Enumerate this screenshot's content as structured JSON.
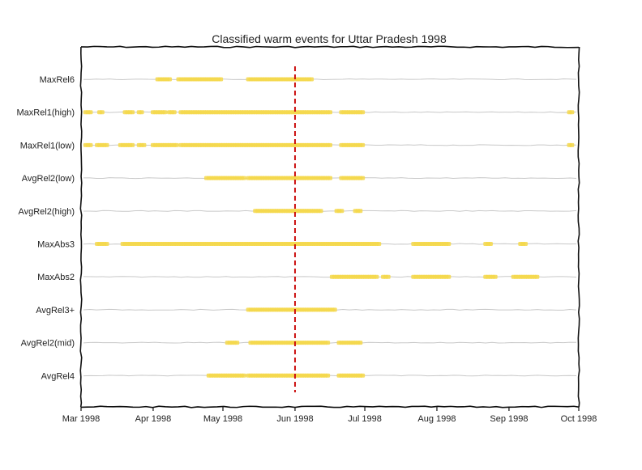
{
  "chart_data": {
    "type": "scatter",
    "title": "Classified warm events for Uttar Pradesh 1998",
    "xlabel": "",
    "ylabel": "",
    "x_range": [
      "1998-03-01",
      "1998-10-01"
    ],
    "x_ticks": [
      "Mar 1998",
      "Apr 1998",
      "May 1998",
      "Jun 1998",
      "Jul 1998",
      "Aug 1998",
      "Sep 1998",
      "Oct 1998"
    ],
    "marker_color": "#f5d84b",
    "baseline_color": "#c8c8c8",
    "reference_line": {
      "date": "1998-06-01",
      "color": "#cc1111",
      "style": "dashed"
    },
    "series": [
      {
        "name": "MaxRel6",
        "events": [
          [
            "1998-04-03",
            "1998-04-08"
          ],
          [
            "1998-04-12",
            "1998-04-30"
          ],
          [
            "1998-05-12",
            "1998-06-08"
          ]
        ]
      },
      {
        "name": "MaxRel1(high)",
        "events": [
          [
            "1998-03-03",
            "1998-03-05"
          ],
          [
            "1998-03-09",
            "1998-03-10"
          ],
          [
            "1998-03-20",
            "1998-03-23"
          ],
          [
            "1998-03-26",
            "1998-03-27"
          ],
          [
            "1998-04-01",
            "1998-04-06"
          ],
          [
            "1998-04-08",
            "1998-04-10"
          ],
          [
            "1998-04-13",
            "1998-06-16"
          ],
          [
            "1998-06-21",
            "1998-06-30"
          ],
          [
            "1998-09-27",
            "1998-09-28"
          ]
        ]
      },
      {
        "name": "MaxRel1(low)",
        "events": [
          [
            "1998-03-03",
            "1998-03-05"
          ],
          [
            "1998-03-08",
            "1998-03-12"
          ],
          [
            "1998-03-18",
            "1998-03-23"
          ],
          [
            "1998-03-26",
            "1998-03-28"
          ],
          [
            "1998-04-01",
            "1998-04-11"
          ],
          [
            "1998-04-13",
            "1998-06-16"
          ],
          [
            "1998-06-21",
            "1998-06-30"
          ],
          [
            "1998-09-27",
            "1998-09-28"
          ]
        ]
      },
      {
        "name": "AvgRel2(low)",
        "events": [
          [
            "1998-04-24",
            "1998-05-10"
          ],
          [
            "1998-05-12",
            "1998-06-16"
          ],
          [
            "1998-06-21",
            "1998-06-30"
          ]
        ]
      },
      {
        "name": "AvgRel2(high)",
        "events": [
          [
            "1998-05-15",
            "1998-06-12"
          ],
          [
            "1998-06-19",
            "1998-06-21"
          ],
          [
            "1998-06-27",
            "1998-06-29"
          ]
        ]
      },
      {
        "name": "MaxAbs3",
        "events": [
          [
            "1998-03-08",
            "1998-03-12"
          ],
          [
            "1998-03-19",
            "1998-07-07"
          ],
          [
            "1998-07-22",
            "1998-08-06"
          ],
          [
            "1998-08-22",
            "1998-08-24"
          ],
          [
            "1998-09-06",
            "1998-09-08"
          ]
        ]
      },
      {
        "name": "MaxAbs2",
        "events": [
          [
            "1998-06-17",
            "1998-07-06"
          ],
          [
            "1998-07-09",
            "1998-07-11"
          ],
          [
            "1998-07-22",
            "1998-08-06"
          ],
          [
            "1998-08-22",
            "1998-08-26"
          ],
          [
            "1998-09-03",
            "1998-09-13"
          ]
        ]
      },
      {
        "name": "AvgRel3+",
        "events": [
          [
            "1998-05-12",
            "1998-06-18"
          ]
        ]
      },
      {
        "name": "AvgRel2(mid)",
        "events": [
          [
            "1998-05-03",
            "1998-05-07"
          ],
          [
            "1998-05-13",
            "1998-06-15"
          ],
          [
            "1998-06-20",
            "1998-06-29"
          ]
        ]
      },
      {
        "name": "AvgRel4",
        "events": [
          [
            "1998-04-25",
            "1998-05-10"
          ],
          [
            "1998-05-12",
            "1998-06-15"
          ],
          [
            "1998-06-20",
            "1998-06-30"
          ]
        ]
      }
    ]
  }
}
